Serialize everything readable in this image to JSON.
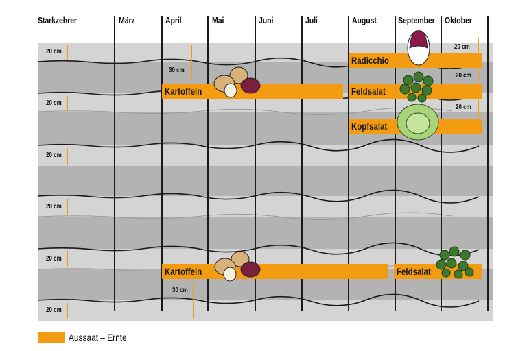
{
  "header": {
    "title": "Starkzehrer",
    "months": [
      "März",
      "April",
      "Mai",
      "Juni",
      "Juli",
      "August",
      "September",
      "Oktober"
    ]
  },
  "spacings": {
    "row_20": "20 cm",
    "row_30": "30 cm"
  },
  "crops": [
    {
      "label": "Radicchio",
      "start": "August",
      "end": "Oktober",
      "icon": "radicchio-icon"
    },
    {
      "label": "Kartoffeln",
      "start": "April",
      "end": "Juli",
      "icon": "potatoes-icon"
    },
    {
      "label": "Feldsalat",
      "start": "August",
      "end": "Oktober",
      "icon": "lambs-lettuce-icon"
    },
    {
      "label": "Kopfsalat",
      "start": "August",
      "end": "Oktober",
      "icon": "lettuce-icon"
    },
    {
      "label": "Kartoffeln",
      "start": "April",
      "end": "August",
      "icon": "potatoes-icon"
    },
    {
      "label": "Feldsalat",
      "start": "September",
      "end": "Oktober",
      "icon": "lambs-lettuce-icon"
    }
  ],
  "legend": {
    "label": "Aussaat – Ernte",
    "color": "#f39c12"
  },
  "colors": {
    "bar": "#f39c12",
    "light_bed": "#d4d4d4",
    "dark_bed": "#b3b3b3"
  }
}
